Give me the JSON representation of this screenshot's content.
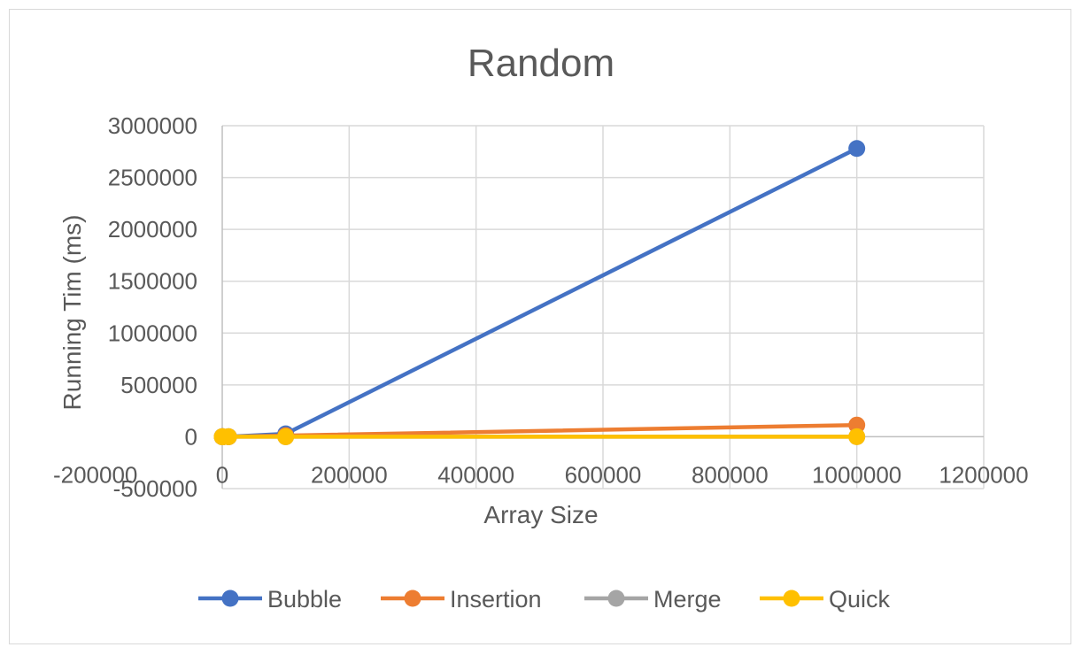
{
  "chart_data": {
    "type": "line",
    "title": "Random",
    "xlabel": "Array Size",
    "ylabel": "Running Tim (ms)",
    "xlim": [
      -200000,
      1200000
    ],
    "ylim": [
      -500000,
      3000000
    ],
    "x_ticks": [
      -200000,
      0,
      200000,
      400000,
      600000,
      800000,
      1000000,
      1200000
    ],
    "y_ticks": [
      -500000,
      0,
      500000,
      1000000,
      1500000,
      2000000,
      2500000,
      3000000
    ],
    "grid": true,
    "legend_position": "bottom",
    "x": [
      10,
      100,
      1000,
      10000,
      100000,
      1000000
    ],
    "series": [
      {
        "name": "Bubble",
        "color": "#4472c4",
        "values": [
          0,
          0,
          2,
          250,
          28000,
          2780000
        ]
      },
      {
        "name": "Insertion",
        "color": "#ed7d31",
        "values": [
          0,
          0,
          1,
          100,
          11000,
          113000
        ]
      },
      {
        "name": "Merge",
        "color": "#a5a5a5",
        "values": [
          0,
          0,
          0,
          3,
          40,
          450
        ]
      },
      {
        "name": "Quick",
        "color": "#ffc000",
        "values": [
          0,
          0,
          0,
          2,
          25,
          300
        ]
      }
    ]
  }
}
